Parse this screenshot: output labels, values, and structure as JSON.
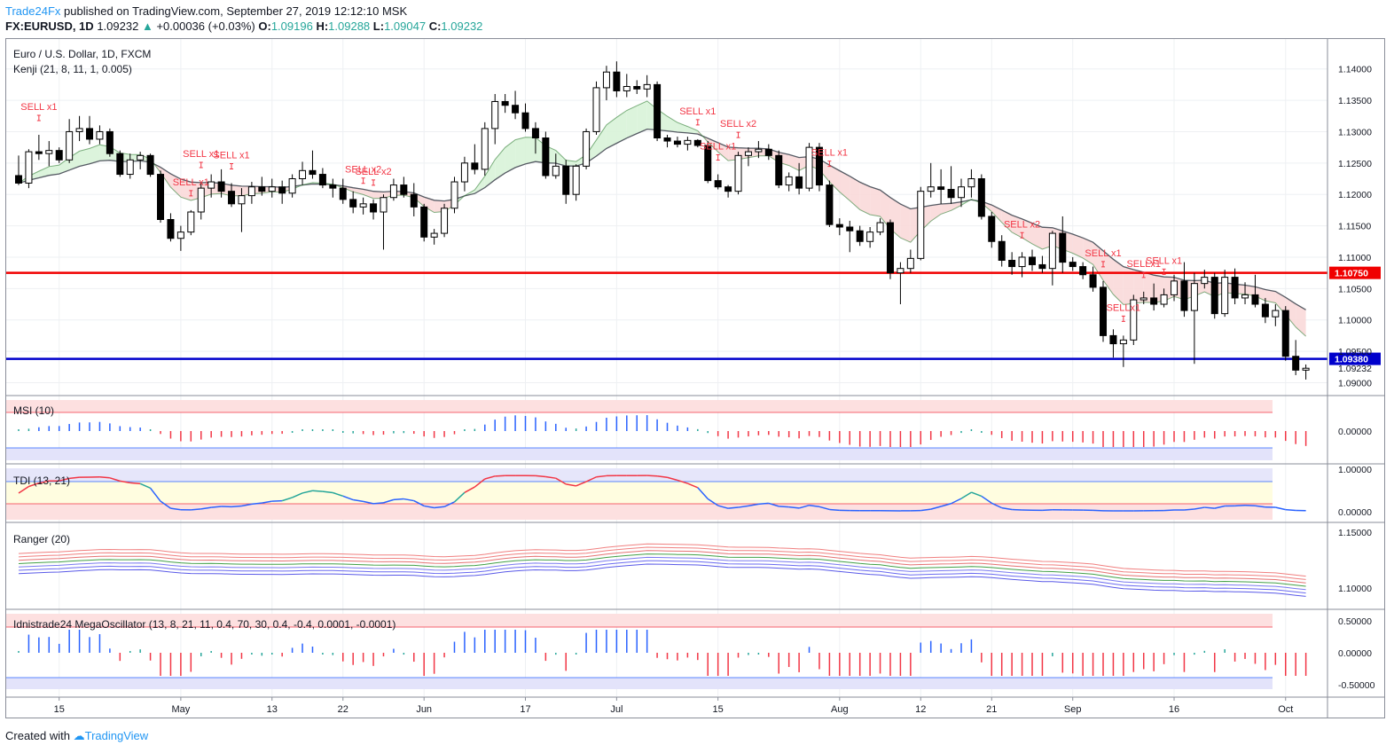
{
  "header": {
    "publisher": "Trade24Fx",
    "published_text": "published on TradingView.com, September 27, 2019 12:12:10 MSK",
    "symbol": "FX:EURUSD, 1D",
    "last": "1.09232",
    "change_arrow": "▲",
    "change": "+0.00036 (+0.03%)",
    "o_label": "O:",
    "o": "1.09196",
    "h_label": "H:",
    "h": "1.09288",
    "l_label": "L:",
    "l": "1.09047",
    "c_label": "C:",
    "c": "1.09232"
  },
  "main_pane": {
    "title": "Euro / U.S. Dollar, 1D, FXCM",
    "indicator": "Kenji (21, 8, 11, 1, 0.005)"
  },
  "chart_data": {
    "type": "candlestick",
    "symbol": "EURUSD",
    "timeframe": "1D",
    "ylim": [
      1.0895,
      1.1425
    ],
    "price_ticks": [
      "1.14000",
      "1.13500",
      "1.13000",
      "1.12500",
      "1.12000",
      "1.11500",
      "1.11000",
      "1.10500",
      "1.10000",
      "1.09500",
      "1.09000"
    ],
    "price_tick_values": [
      1.14,
      1.135,
      1.13,
      1.125,
      1.12,
      1.115,
      1.11,
      1.105,
      1.1,
      1.095,
      1.09
    ],
    "horizontal_lines": [
      {
        "value": 1.1075,
        "label": "1.10750",
        "color": "#f00000"
      },
      {
        "value": 1.0938,
        "label": "1.09380",
        "color": "#0000cc"
      }
    ],
    "last_price_label": "1.09232",
    "x_labels": [
      "15",
      "May",
      "13",
      "22",
      "Jun",
      "17",
      "Jul",
      "15",
      "Aug",
      "12",
      "21",
      "Sep",
      "16",
      "Oct"
    ],
    "x_label_days": [
      4,
      16,
      25,
      32,
      40,
      50,
      59,
      69,
      81,
      89,
      96,
      104,
      114,
      125
    ],
    "candles": [
      [
        1.123,
        1.1262,
        1.1215,
        1.1218
      ],
      [
        1.1218,
        1.1272,
        1.121,
        1.1268
      ],
      [
        1.1268,
        1.1295,
        1.1255,
        1.1265
      ],
      [
        1.1265,
        1.1285,
        1.1245,
        1.127
      ],
      [
        1.127,
        1.1275,
        1.125,
        1.1255
      ],
      [
        1.1255,
        1.132,
        1.125,
        1.13
      ],
      [
        1.13,
        1.1325,
        1.1285,
        1.1305
      ],
      [
        1.1305,
        1.1325,
        1.128,
        1.1288
      ],
      [
        1.1288,
        1.131,
        1.128,
        1.13
      ],
      [
        1.13,
        1.1305,
        1.126,
        1.1265
      ],
      [
        1.1265,
        1.127,
        1.1228,
        1.1232
      ],
      [
        1.1232,
        1.1265,
        1.1225,
        1.1255
      ],
      [
        1.1255,
        1.1268,
        1.124,
        1.1262
      ],
      [
        1.1262,
        1.1265,
        1.1228,
        1.1232
      ],
      [
        1.1232,
        1.1238,
        1.1155,
        1.116
      ],
      [
        1.116,
        1.117,
        1.1125,
        1.113
      ],
      [
        1.113,
        1.115,
        1.111,
        1.114
      ],
      [
        1.114,
        1.1175,
        1.1135,
        1.1172
      ],
      [
        1.1172,
        1.122,
        1.116,
        1.121
      ],
      [
        1.121,
        1.1232,
        1.1195,
        1.122
      ],
      [
        1.122,
        1.124,
        1.1195,
        1.1205
      ],
      [
        1.1205,
        1.1218,
        1.118,
        1.1185
      ],
      [
        1.1185,
        1.121,
        1.114,
        1.1198
      ],
      [
        1.1198,
        1.122,
        1.1185,
        1.1212
      ],
      [
        1.1212,
        1.1228,
        1.1198,
        1.1205
      ],
      [
        1.1205,
        1.1225,
        1.1195,
        1.1212
      ],
      [
        1.1212,
        1.1222,
        1.1185,
        1.1202
      ],
      [
        1.1202,
        1.1232,
        1.1195,
        1.1225
      ],
      [
        1.1225,
        1.1252,
        1.1215,
        1.1238
      ],
      [
        1.1238,
        1.127,
        1.1225,
        1.1232
      ],
      [
        1.1232,
        1.1242,
        1.121,
        1.1215
      ],
      [
        1.1215,
        1.1225,
        1.1195,
        1.121
      ],
      [
        1.121,
        1.1225,
        1.1185,
        1.1192
      ],
      [
        1.1192,
        1.1205,
        1.117,
        1.118
      ],
      [
        1.118,
        1.1195,
        1.1168,
        1.1185
      ],
      [
        1.1185,
        1.1192,
        1.116,
        1.1172
      ],
      [
        1.1172,
        1.12,
        1.1112,
        1.1195
      ],
      [
        1.1195,
        1.1225,
        1.119,
        1.1215
      ],
      [
        1.1215,
        1.1228,
        1.1195,
        1.12
      ],
      [
        1.12,
        1.1218,
        1.1165,
        1.118
      ],
      [
        1.118,
        1.1185,
        1.1125,
        1.1132
      ],
      [
        1.1132,
        1.1145,
        1.112,
        1.1138
      ],
      [
        1.1138,
        1.1185,
        1.1132,
        1.1178
      ],
      [
        1.1178,
        1.1228,
        1.117,
        1.122
      ],
      [
        1.122,
        1.126,
        1.1205,
        1.125
      ],
      [
        1.125,
        1.128,
        1.1232,
        1.124
      ],
      [
        1.124,
        1.1315,
        1.123,
        1.1305
      ],
      [
        1.1305,
        1.136,
        1.128,
        1.1348
      ],
      [
        1.1348,
        1.136,
        1.133,
        1.1342
      ],
      [
        1.1342,
        1.1365,
        1.132,
        1.133
      ],
      [
        1.133,
        1.1345,
        1.13,
        1.1305
      ],
      [
        1.1305,
        1.1315,
        1.1265,
        1.129
      ],
      [
        1.129,
        1.13,
        1.1225,
        1.123
      ],
      [
        1.123,
        1.1265,
        1.1225,
        1.1245
      ],
      [
        1.1245,
        1.1255,
        1.1185,
        1.12
      ],
      [
        1.12,
        1.1248,
        1.119,
        1.1245
      ],
      [
        1.1245,
        1.1305,
        1.124,
        1.13
      ],
      [
        1.13,
        1.138,
        1.1295,
        1.137
      ],
      [
        1.137,
        1.1405,
        1.135,
        1.1395
      ],
      [
        1.1395,
        1.1412,
        1.1355,
        1.1365
      ],
      [
        1.1365,
        1.1392,
        1.1355,
        1.1372
      ],
      [
        1.1372,
        1.1382,
        1.136,
        1.1368
      ],
      [
        1.1368,
        1.139,
        1.1355,
        1.1375
      ],
      [
        1.1375,
        1.138,
        1.1285,
        1.129
      ],
      [
        1.129,
        1.1295,
        1.1275,
        1.1285
      ],
      [
        1.1285,
        1.1292,
        1.1275,
        1.128
      ],
      [
        1.128,
        1.1292,
        1.127,
        1.1286
      ],
      [
        1.1286,
        1.1288,
        1.1275,
        1.1278
      ],
      [
        1.1278,
        1.1285,
        1.1218,
        1.1222
      ],
      [
        1.1222,
        1.1232,
        1.1208,
        1.1212
      ],
      [
        1.1212,
        1.1215,
        1.1195,
        1.1205
      ],
      [
        1.1205,
        1.1268,
        1.12,
        1.1262
      ],
      [
        1.1262,
        1.1275,
        1.1245,
        1.1268
      ],
      [
        1.1268,
        1.1285,
        1.1258,
        1.1272
      ],
      [
        1.1272,
        1.128,
        1.1255,
        1.1262
      ],
      [
        1.1262,
        1.127,
        1.121,
        1.1215
      ],
      [
        1.1215,
        1.1235,
        1.1205,
        1.1228
      ],
      [
        1.1228,
        1.125,
        1.12,
        1.121
      ],
      [
        1.121,
        1.1282,
        1.1205,
        1.1275
      ],
      [
        1.1275,
        1.1282,
        1.1205,
        1.1215
      ],
      [
        1.1215,
        1.1222,
        1.1148,
        1.1152
      ],
      [
        1.1152,
        1.1162,
        1.1135,
        1.1148
      ],
      [
        1.1148,
        1.1158,
        1.1108,
        1.1142
      ],
      [
        1.1142,
        1.115,
        1.1118,
        1.1125
      ],
      [
        1.1125,
        1.1148,
        1.1115,
        1.114
      ],
      [
        1.114,
        1.1162,
        1.1135,
        1.1155
      ],
      [
        1.1155,
        1.116,
        1.1065,
        1.1075
      ],
      [
        1.1075,
        1.1092,
        1.1025,
        1.1082
      ],
      [
        1.1082,
        1.1112,
        1.1075,
        1.1098
      ],
      [
        1.1098,
        1.1212,
        1.1095,
        1.1205
      ],
      [
        1.1205,
        1.125,
        1.1195,
        1.1212
      ],
      [
        1.1212,
        1.124,
        1.1185,
        1.1208
      ],
      [
        1.1208,
        1.1245,
        1.1185,
        1.1195
      ],
      [
        1.1195,
        1.1225,
        1.118,
        1.1212
      ],
      [
        1.1212,
        1.124,
        1.1195,
        1.1225
      ],
      [
        1.1225,
        1.1232,
        1.116,
        1.1165
      ],
      [
        1.1165,
        1.1172,
        1.1115,
        1.1125
      ],
      [
        1.1125,
        1.1135,
        1.1085,
        1.1095
      ],
      [
        1.1095,
        1.1108,
        1.1072,
        1.1085
      ],
      [
        1.1085,
        1.1108,
        1.1068,
        1.11
      ],
      [
        1.11,
        1.1112,
        1.1078,
        1.1088
      ],
      [
        1.1088,
        1.1102,
        1.1075,
        1.1082
      ],
      [
        1.1082,
        1.1142,
        1.1055,
        1.1138
      ],
      [
        1.1138,
        1.1165,
        1.1075,
        1.1092
      ],
      [
        1.1092,
        1.11,
        1.1078,
        1.1085
      ],
      [
        1.1085,
        1.1092,
        1.1065,
        1.1072
      ],
      [
        1.1072,
        1.1085,
        1.1045,
        1.1052
      ],
      [
        1.1052,
        1.1062,
        1.0965,
        1.0975
      ],
      [
        1.0975,
        1.0985,
        1.094,
        1.0962
      ],
      [
        1.0962,
        1.0975,
        1.0925,
        1.0968
      ],
      [
        1.0968,
        1.104,
        1.096,
        1.1032
      ],
      [
        1.1032,
        1.1045,
        1.1025,
        1.1035
      ],
      [
        1.1035,
        1.1058,
        1.1015,
        1.1025
      ],
      [
        1.1025,
        1.105,
        1.102,
        1.104
      ],
      [
        1.104,
        1.1072,
        1.103,
        1.1062
      ],
      [
        1.1062,
        1.1092,
        1.1005,
        1.1015
      ],
      [
        1.1015,
        1.1075,
        1.093,
        1.1058
      ],
      [
        1.1058,
        1.108,
        1.105,
        1.1068
      ],
      [
        1.1068,
        1.1075,
        1.1002,
        1.101
      ],
      [
        1.101,
        1.108,
        1.1005,
        1.1068
      ],
      [
        1.1068,
        1.1082,
        1.1025,
        1.1035
      ],
      [
        1.1035,
        1.106,
        1.1025,
        1.104
      ],
      [
        1.104,
        1.1072,
        1.102,
        1.1025
      ],
      [
        1.1025,
        1.1035,
        1.0995,
        1.1005
      ],
      [
        1.1005,
        1.1025,
        1.099,
        1.1015
      ],
      [
        1.1015,
        1.1022,
        1.0935,
        1.0942
      ],
      [
        1.0942,
        1.0968,
        1.0912,
        1.092
      ],
      [
        1.092,
        1.0929,
        1.0905,
        1.0923
      ]
    ],
    "sell_signals": [
      {
        "label": "SELL x1",
        "day": 2
      },
      {
        "label": "SELL x1",
        "day": 17
      },
      {
        "label": "SELL x1",
        "day": 18
      },
      {
        "label": "SELL x1",
        "day": 21
      },
      {
        "label": "SELL x2",
        "day": 34
      },
      {
        "label": "SELL x2",
        "day": 35
      },
      {
        "label": "SELL x1",
        "day": 67
      },
      {
        "label": "SELL x1",
        "day": 69
      },
      {
        "label": "SELL x2",
        "day": 71
      },
      {
        "label": "SELL x1",
        "day": 80
      },
      {
        "label": "SELL x2",
        "day": 99
      },
      {
        "label": "SELL x1",
        "day": 107
      },
      {
        "label": "SELLx1",
        "day": 109
      },
      {
        "label": "SELLx1",
        "day": 111
      },
      {
        "label": "SELL x1",
        "day": 113
      }
    ],
    "panes": [
      {
        "name": "MSI (10)",
        "ticks": [
          "0.00000"
        ],
        "colors": [
          "#2962ff",
          "#26a69a",
          "#f23645"
        ]
      },
      {
        "name": "TDI (13, 21)",
        "ticks": [
          "1.00000",
          "0.00000"
        ]
      },
      {
        "name": "Ranger (20)",
        "ticks": [
          "1.15000",
          "1.10000"
        ]
      },
      {
        "name": "Idnistrade24 MegaOscillator (13, 8, 21, 11, 0.4, 70, 30, 0.4, -0.4, 0.0001, -0.0001)",
        "ticks": [
          "0.50000",
          "0.00000",
          "-0.50000"
        ]
      }
    ]
  },
  "footer": {
    "created_with": "Created with",
    "brand": "TradingView"
  }
}
